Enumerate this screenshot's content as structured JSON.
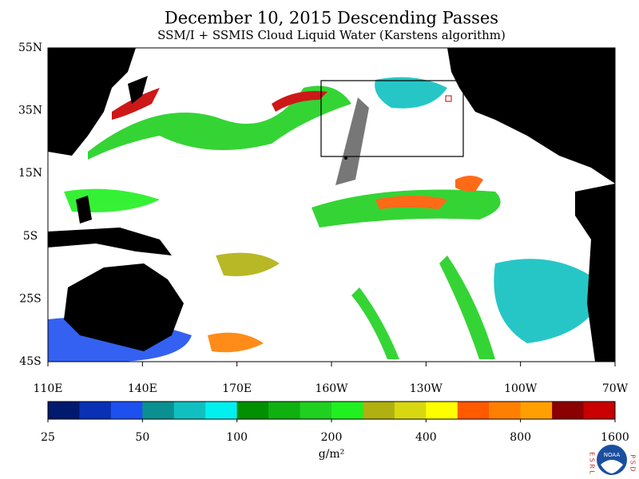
{
  "header": {
    "title": "December 10, 2015  Descending Passes",
    "subtitle": "SSM/I + SSMIS Cloud Liquid Water (Karstens algorithm)"
  },
  "map": {
    "lat_labels": [
      "55N",
      "35N",
      "15N",
      "5S",
      "25S",
      "45S"
    ],
    "lon_labels": [
      "110E",
      "140E",
      "170E",
      "160W",
      "130W",
      "100W",
      "70W"
    ]
  },
  "colorbar": {
    "colors": [
      "#001a6e",
      "#0a30b4",
      "#1e50f0",
      "#0a9090",
      "#10c0c0",
      "#00f0f0",
      "#009000",
      "#10b010",
      "#20d020",
      "#20f020",
      "#b0b010",
      "#d8d810",
      "#ffff00",
      "#ff5a00",
      "#ff8000",
      "#ffa000",
      "#8b0000",
      "#c80000",
      "#ff1010"
    ],
    "ticks": [
      25,
      50,
      100,
      200,
      400,
      800,
      1600
    ],
    "unit": "g/m²"
  },
  "logo": {
    "left": "E S R L",
    "right": "P S D",
    "center": "NOAA"
  }
}
